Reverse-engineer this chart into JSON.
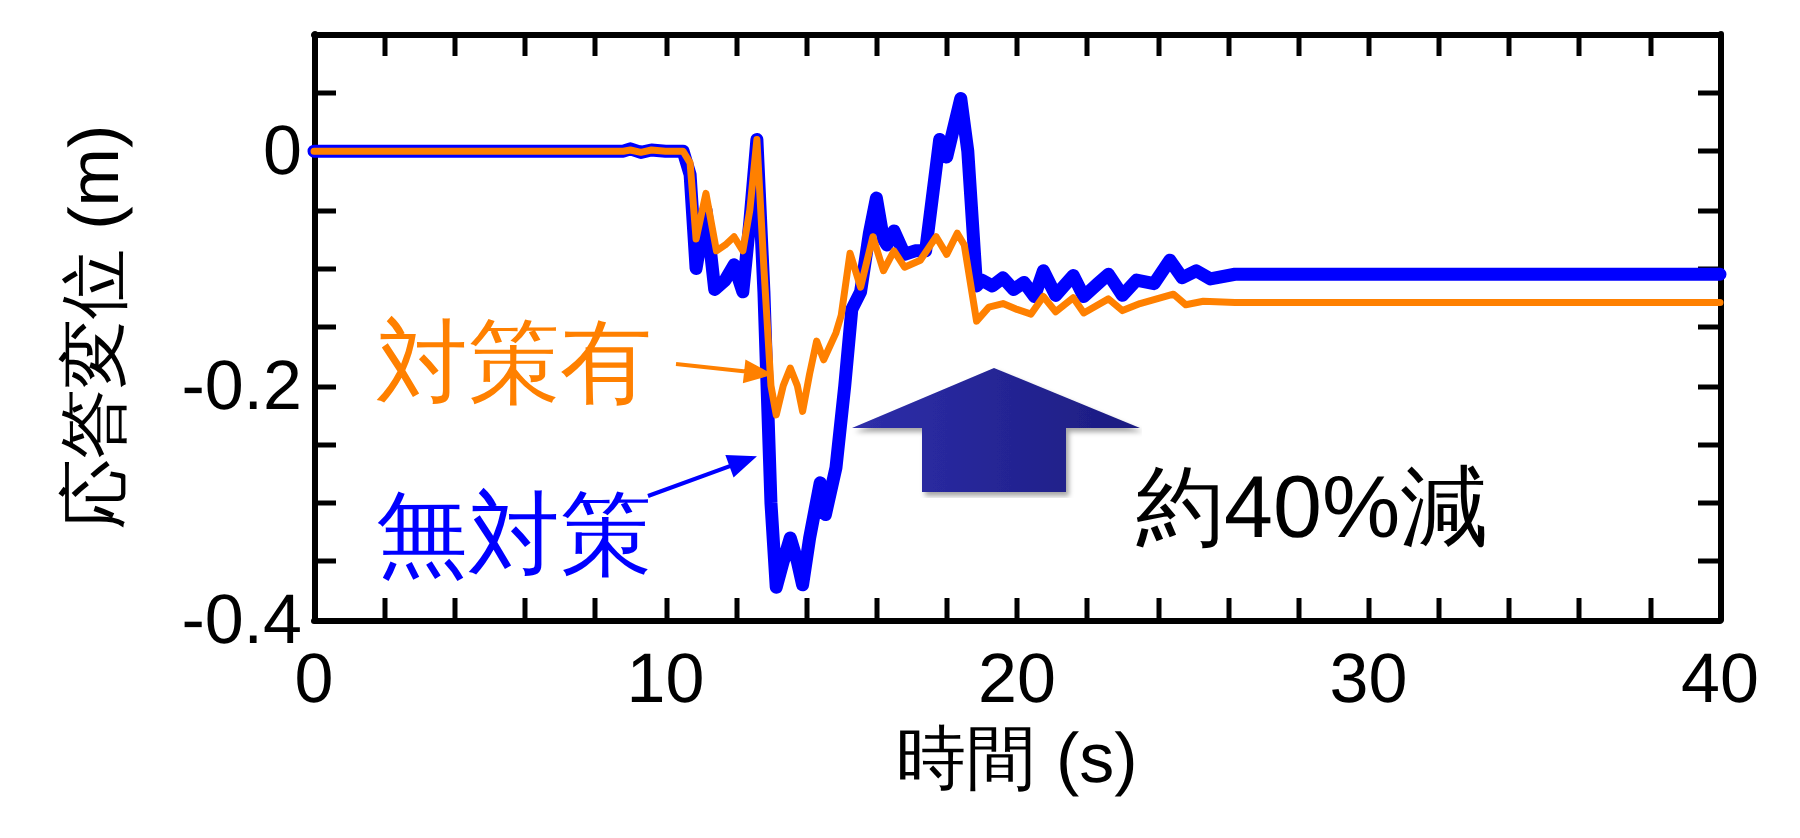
{
  "chart_data": {
    "type": "line",
    "xlabel": "時間 (s)",
    "ylabel": "応答変位 (m)",
    "annotations": [
      "約40%減"
    ],
    "series": [
      {
        "name": "無対策",
        "color": "#0000ff",
        "x": [
          0,
          8.8,
          9.0,
          9.3,
          9.6,
          10.0,
          10.5,
          10.7,
          10.87,
          11.15,
          11.4,
          11.7,
          11.95,
          12.2,
          12.4,
          12.6,
          12.8,
          13.0,
          13.15,
          13.35,
          13.55,
          13.75,
          13.9,
          14.1,
          14.4,
          14.55,
          14.85,
          15.1,
          15.3,
          15.55,
          15.8,
          16.0,
          16.2,
          16.3,
          16.5,
          16.8,
          17.1,
          17.4,
          17.8,
          18.0,
          18.4,
          18.6,
          18.85,
          19.0,
          19.3,
          19.6,
          19.9,
          20.2,
          20.5,
          20.75,
          21.1,
          21.6,
          21.9,
          22.3,
          22.6,
          23.0,
          23.4,
          23.9,
          24.35,
          24.7,
          25.1,
          25.5,
          26.2,
          40
        ],
        "values": [
          0,
          0,
          0.002,
          -0.001,
          0.001,
          0,
          0,
          -0.02,
          -0.1,
          -0.05,
          -0.118,
          -0.11,
          -0.097,
          -0.12,
          -0.06,
          0.01,
          -0.12,
          -0.3,
          -0.372,
          -0.35,
          -0.33,
          -0.35,
          -0.37,
          -0.33,
          -0.283,
          -0.31,
          -0.27,
          -0.2,
          -0.135,
          -0.12,
          -0.07,
          -0.04,
          -0.075,
          -0.08,
          -0.068,
          -0.088,
          -0.085,
          -0.085,
          0.01,
          -0.005,
          0.045,
          0.0,
          -0.115,
          -0.11,
          -0.115,
          -0.108,
          -0.118,
          -0.112,
          -0.124,
          -0.102,
          -0.123,
          -0.106,
          -0.124,
          -0.113,
          -0.105,
          -0.123,
          -0.11,
          -0.113,
          -0.093,
          -0.108,
          -0.102,
          -0.109,
          -0.105,
          -0.105
        ]
      },
      {
        "name": "対策有",
        "color": "#ff8000",
        "x": [
          0,
          8.8,
          9.0,
          9.3,
          9.6,
          10.0,
          10.5,
          10.7,
          10.87,
          11.15,
          11.45,
          11.7,
          11.95,
          12.2,
          12.4,
          12.6,
          12.8,
          13.0,
          13.15,
          13.35,
          13.55,
          13.75,
          13.9,
          14.1,
          14.3,
          14.5,
          14.85,
          15.0,
          15.25,
          15.55,
          15.9,
          16.2,
          16.5,
          16.8,
          17.25,
          17.7,
          18.0,
          18.3,
          18.5,
          18.85,
          19.2,
          19.6,
          20.0,
          20.4,
          20.75,
          21.1,
          21.6,
          21.9,
          22.6,
          23.0,
          23.5,
          24.45,
          24.8,
          25.3,
          26.2,
          40
        ],
        "values": [
          0,
          0,
          0.001,
          -0.001,
          0.001,
          0,
          0,
          -0.01,
          -0.075,
          -0.036,
          -0.085,
          -0.08,
          -0.073,
          -0.085,
          -0.05,
          0.01,
          -0.1,
          -0.2,
          -0.225,
          -0.2,
          -0.185,
          -0.2,
          -0.222,
          -0.19,
          -0.162,
          -0.178,
          -0.155,
          -0.14,
          -0.087,
          -0.116,
          -0.073,
          -0.102,
          -0.085,
          -0.099,
          -0.093,
          -0.073,
          -0.088,
          -0.07,
          -0.08,
          -0.145,
          -0.133,
          -0.13,
          -0.135,
          -0.139,
          -0.124,
          -0.137,
          -0.125,
          -0.138,
          -0.126,
          -0.136,
          -0.13,
          -0.122,
          -0.131,
          -0.128,
          -0.129,
          -0.129
        ]
      }
    ],
    "xlim": [
      0,
      40
    ],
    "ylim": [
      -0.4,
      0.1
    ],
    "xticks": [
      0,
      {
        "value": 2,
        "label": null
      },
      {
        "value": 4,
        "label": null
      },
      {
        "value": 6,
        "label": null
      },
      {
        "value": 8,
        "label": null
      },
      10,
      {
        "value": 12,
        "label": null
      },
      {
        "value": 14,
        "label": null
      },
      {
        "value": 16,
        "label": null
      },
      {
        "value": 18,
        "label": null
      },
      20,
      {
        "value": 22,
        "label": null
      },
      {
        "value": 24,
        "label": null
      },
      {
        "value": 26,
        "label": null
      },
      {
        "value": 28,
        "label": null
      },
      30,
      {
        "value": 32,
        "label": null
      },
      {
        "value": 34,
        "label": null
      },
      {
        "value": 36,
        "label": null
      },
      {
        "value": 38,
        "label": null
      },
      40
    ],
    "yticks": [
      -0.4,
      {
        "value": -0.35,
        "label": null
      },
      {
        "value": -0.3,
        "label": null
      },
      {
        "value": -0.25,
        "label": null
      },
      -0.2,
      {
        "value": -0.15,
        "label": null
      },
      {
        "value": -0.1,
        "label": null
      },
      {
        "value": -0.05,
        "label": null
      },
      0,
      {
        "value": 0.05,
        "label": null
      }
    ],
    "grid": false,
    "legend": "left",
    "marker": "none",
    "line_style": "solid"
  }
}
